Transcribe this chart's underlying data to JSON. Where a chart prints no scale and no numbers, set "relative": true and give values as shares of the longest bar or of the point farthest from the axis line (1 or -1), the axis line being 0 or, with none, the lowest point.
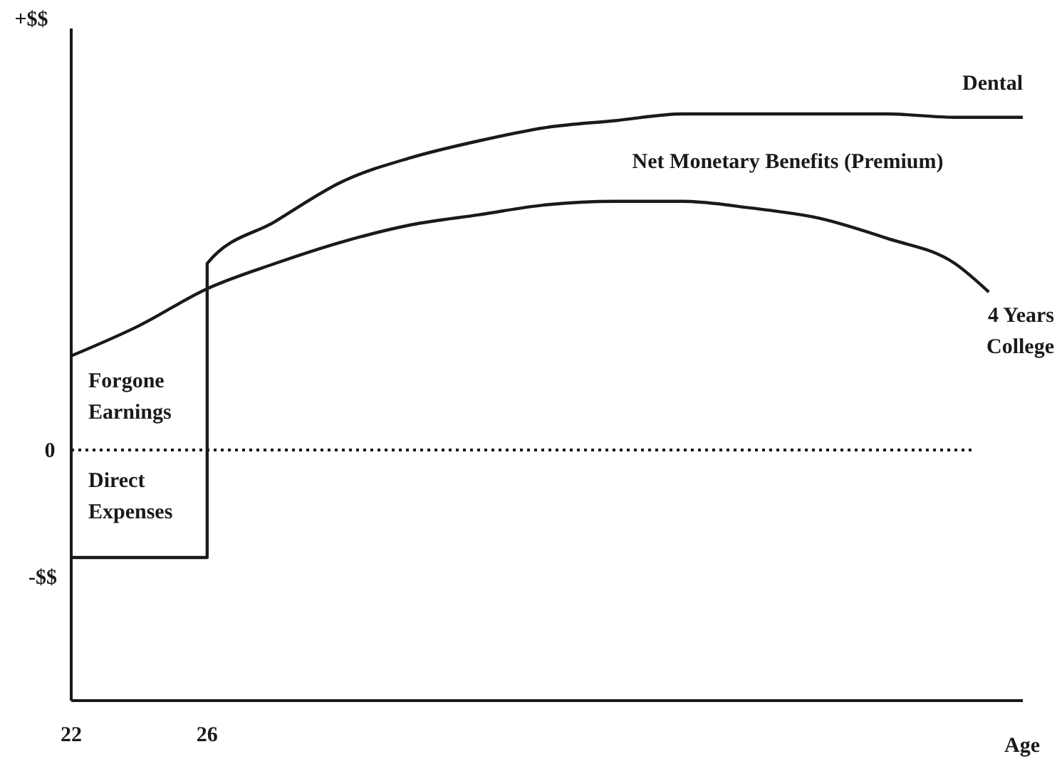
{
  "chart_data": {
    "type": "line",
    "relative": true,
    "xlabel": "Age",
    "xlim": [
      22,
      50
    ],
    "xticks": [
      22,
      26
    ],
    "grid": false,
    "legend": false,
    "marker": "none",
    "line_style": "solid",
    "series": [
      {
        "name": "Dental",
        "color": "#1a1a1a",
        "x": [
          22,
          26,
          26,
          28,
          30,
          32,
          34,
          36,
          38,
          40,
          42,
          44,
          46,
          48,
          50
        ],
        "values": [
          -0.32,
          -0.32,
          0.555,
          0.68,
          0.8,
          0.87,
          0.92,
          0.96,
          0.98,
          1.0,
          1.0,
          1.0,
          1.0,
          0.99,
          0.99
        ]
      },
      {
        "name": "4 Years College",
        "color": "#1a1a1a",
        "x": [
          22,
          24,
          26,
          28,
          30,
          32,
          34,
          36,
          38,
          40,
          42,
          44,
          46,
          48,
          49
        ],
        "values": [
          0.28,
          0.37,
          0.48,
          0.555,
          0.62,
          0.67,
          0.7,
          0.73,
          0.74,
          0.74,
          0.72,
          0.69,
          0.63,
          0.555,
          0.47
        ]
      }
    ],
    "ref_lines": [
      {
        "axis": "y",
        "value": 0,
        "label": "0",
        "line_style": "dotted",
        "color": "#1a1a1a"
      }
    ],
    "annotations": [
      "+$$",
      "-$$",
      "Net Monetary Benefits (Premium)",
      "Forgone Earnings",
      "Direct Expenses"
    ]
  }
}
